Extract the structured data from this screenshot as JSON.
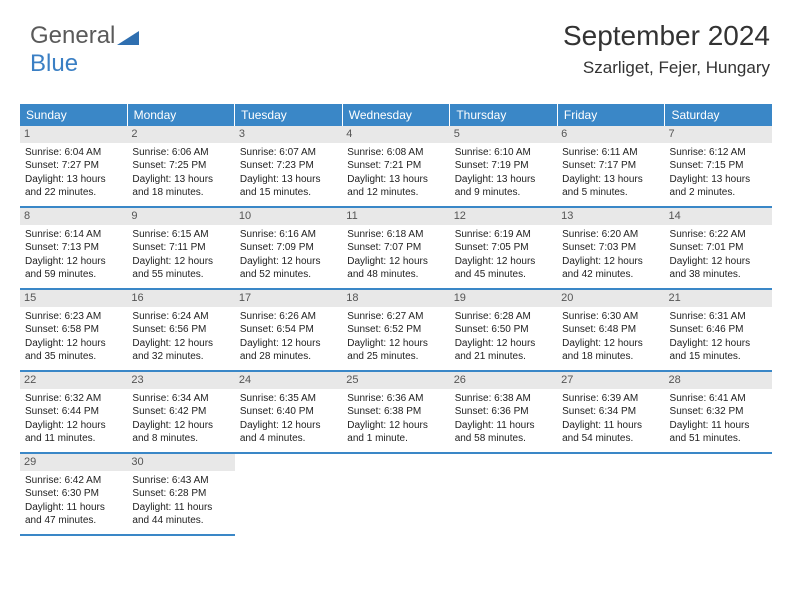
{
  "logo": {
    "text1": "General",
    "text2": "Blue",
    "triangle_color": "#2f6fb0"
  },
  "header": {
    "title": "September 2024",
    "location": "Szarliget, Fejer, Hungary"
  },
  "colors": {
    "dow_bg": "#3a87c7",
    "dow_fg": "#ffffff",
    "date_bg": "#e8e8e8",
    "date_fg": "#555555",
    "border": "#3a87c7",
    "text": "#222222",
    "title": "#333333",
    "logo_gray": "#5a5a5a",
    "logo_blue": "#3a7fc4"
  },
  "typography": {
    "title_fontsize": 28,
    "location_fontsize": 17,
    "dow_fontsize": 12,
    "date_fontsize": 11,
    "body_fontsize": 10,
    "logo_fontsize": 24
  },
  "days_of_week": [
    "Sunday",
    "Monday",
    "Tuesday",
    "Wednesday",
    "Thursday",
    "Friday",
    "Saturday"
  ],
  "days": [
    {
      "n": 1,
      "sr": "6:04 AM",
      "ss": "7:27 PM",
      "dl": "13 hours and 22 minutes."
    },
    {
      "n": 2,
      "sr": "6:06 AM",
      "ss": "7:25 PM",
      "dl": "13 hours and 18 minutes."
    },
    {
      "n": 3,
      "sr": "6:07 AM",
      "ss": "7:23 PM",
      "dl": "13 hours and 15 minutes."
    },
    {
      "n": 4,
      "sr": "6:08 AM",
      "ss": "7:21 PM",
      "dl": "13 hours and 12 minutes."
    },
    {
      "n": 5,
      "sr": "6:10 AM",
      "ss": "7:19 PM",
      "dl": "13 hours and 9 minutes."
    },
    {
      "n": 6,
      "sr": "6:11 AM",
      "ss": "7:17 PM",
      "dl": "13 hours and 5 minutes."
    },
    {
      "n": 7,
      "sr": "6:12 AM",
      "ss": "7:15 PM",
      "dl": "13 hours and 2 minutes."
    },
    {
      "n": 8,
      "sr": "6:14 AM",
      "ss": "7:13 PM",
      "dl": "12 hours and 59 minutes."
    },
    {
      "n": 9,
      "sr": "6:15 AM",
      "ss": "7:11 PM",
      "dl": "12 hours and 55 minutes."
    },
    {
      "n": 10,
      "sr": "6:16 AM",
      "ss": "7:09 PM",
      "dl": "12 hours and 52 minutes."
    },
    {
      "n": 11,
      "sr": "6:18 AM",
      "ss": "7:07 PM",
      "dl": "12 hours and 48 minutes."
    },
    {
      "n": 12,
      "sr": "6:19 AM",
      "ss": "7:05 PM",
      "dl": "12 hours and 45 minutes."
    },
    {
      "n": 13,
      "sr": "6:20 AM",
      "ss": "7:03 PM",
      "dl": "12 hours and 42 minutes."
    },
    {
      "n": 14,
      "sr": "6:22 AM",
      "ss": "7:01 PM",
      "dl": "12 hours and 38 minutes."
    },
    {
      "n": 15,
      "sr": "6:23 AM",
      "ss": "6:58 PM",
      "dl": "12 hours and 35 minutes."
    },
    {
      "n": 16,
      "sr": "6:24 AM",
      "ss": "6:56 PM",
      "dl": "12 hours and 32 minutes."
    },
    {
      "n": 17,
      "sr": "6:26 AM",
      "ss": "6:54 PM",
      "dl": "12 hours and 28 minutes."
    },
    {
      "n": 18,
      "sr": "6:27 AM",
      "ss": "6:52 PM",
      "dl": "12 hours and 25 minutes."
    },
    {
      "n": 19,
      "sr": "6:28 AM",
      "ss": "6:50 PM",
      "dl": "12 hours and 21 minutes."
    },
    {
      "n": 20,
      "sr": "6:30 AM",
      "ss": "6:48 PM",
      "dl": "12 hours and 18 minutes."
    },
    {
      "n": 21,
      "sr": "6:31 AM",
      "ss": "6:46 PM",
      "dl": "12 hours and 15 minutes."
    },
    {
      "n": 22,
      "sr": "6:32 AM",
      "ss": "6:44 PM",
      "dl": "12 hours and 11 minutes."
    },
    {
      "n": 23,
      "sr": "6:34 AM",
      "ss": "6:42 PM",
      "dl": "12 hours and 8 minutes."
    },
    {
      "n": 24,
      "sr": "6:35 AM",
      "ss": "6:40 PM",
      "dl": "12 hours and 4 minutes."
    },
    {
      "n": 25,
      "sr": "6:36 AM",
      "ss": "6:38 PM",
      "dl": "12 hours and 1 minute."
    },
    {
      "n": 26,
      "sr": "6:38 AM",
      "ss": "6:36 PM",
      "dl": "11 hours and 58 minutes."
    },
    {
      "n": 27,
      "sr": "6:39 AM",
      "ss": "6:34 PM",
      "dl": "11 hours and 54 minutes."
    },
    {
      "n": 28,
      "sr": "6:41 AM",
      "ss": "6:32 PM",
      "dl": "11 hours and 51 minutes."
    },
    {
      "n": 29,
      "sr": "6:42 AM",
      "ss": "6:30 PM",
      "dl": "11 hours and 47 minutes."
    },
    {
      "n": 30,
      "sr": "6:43 AM",
      "ss": "6:28 PM",
      "dl": "11 hours and 44 minutes."
    }
  ],
  "labels": {
    "sunrise": "Sunrise:",
    "sunset": "Sunset:",
    "daylight": "Daylight:"
  },
  "layout": {
    "first_day_column": 0,
    "weeks": 5,
    "cols": 7
  }
}
